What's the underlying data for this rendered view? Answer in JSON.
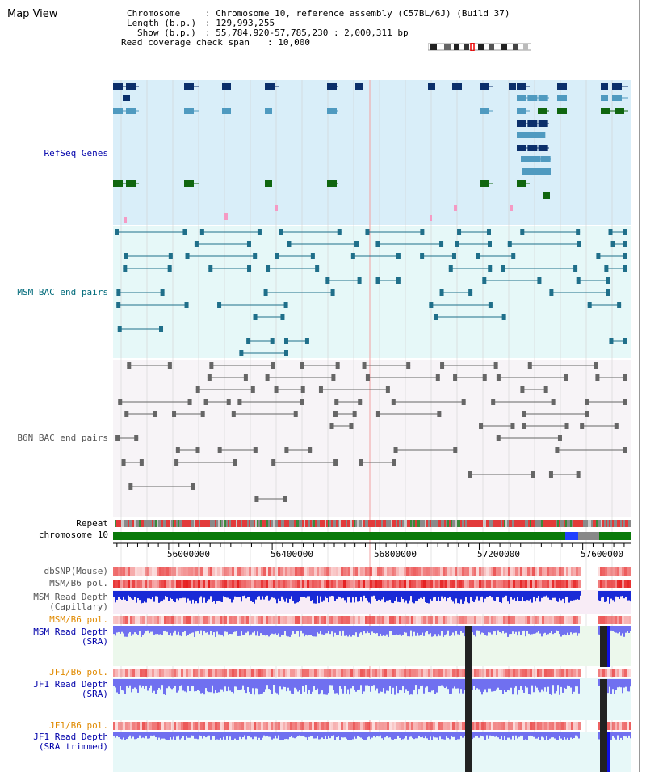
{
  "app": {
    "title": "Map View"
  },
  "info": {
    "chromosome_key": "Chromosome",
    "chromosome_val": ": Chromosome 10, reference assembly (C57BL/6J) (Build 37)",
    "length_key": "Length (b.p.)",
    "length_val": ": 129,993,255",
    "show_key": "Show (b.p.)",
    "show_val": ": 55,784,920-57,785,230 : 2,000,311 bp",
    "coverage_key": "Read coverage check span",
    "coverage_val": ": 10,000"
  },
  "tracks": {
    "refseq": "RefSeq Genes",
    "msm_bac": "MSM BAC end pairs",
    "b6n_bac": "B6N BAC end pairs",
    "repeat": "Repeat",
    "chromosome": "chromosome 10",
    "dbsnp": "dbSNP(Mouse)",
    "msm_b6_pol_1": "MSM/B6 pol.",
    "msm_depth_cap_1": "MSM Read Depth",
    "msm_depth_cap_2": "(Capillary)",
    "msm_b6_pol_2": "MSM/B6 pol.",
    "msm_depth_sra_1": "MSM Read Depth",
    "msm_depth_sra_2": "(SRA)",
    "jf1_b6_pol_1": "JF1/B6 pol.",
    "jf1_depth_sra_1": "JF1 Read Depth",
    "jf1_depth_sra_2": "(SRA)",
    "jf1_b6_pol_2": "JF1/B6 pol.",
    "jf1_depth_trim_1": "JF1 Read Depth",
    "jf1_depth_trim_2": "(SRA trimmed)"
  },
  "ruler": {
    "ticks": [
      "56000000",
      "56400000",
      "56800000",
      "57200000",
      "57600000"
    ],
    "tick_values": [
      56000000,
      56400000,
      56800000,
      57200000,
      57600000
    ],
    "range_start": 55784920,
    "range_end": 57785230
  },
  "colors": {
    "refseq_bg": "#d9eef9",
    "msm_bg": "#e6f8f8",
    "b6n_bg": "#f7f4f7",
    "gene_dark": "#0b2f6b",
    "gene_mid": "#4f9ac0",
    "gene_green": "#106610",
    "bac_msm": "#1f6f8a",
    "bac_b6n": "#666666",
    "chromosome": "#0a7a0a",
    "pol": "#f07a7a",
    "depth_cap": "#1a2ad6",
    "depth_sra": "#7070f0",
    "label_blue": "#0000aa",
    "label_teal": "#006a7a",
    "label_orange": "#e08a00"
  }
}
